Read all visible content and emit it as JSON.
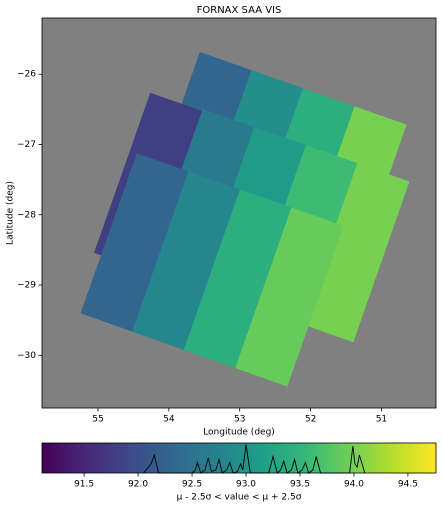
{
  "chart_data": {
    "type": "footprint",
    "title": "FORNAX SAA VIS",
    "xlabel": "Longitude (deg)",
    "ylabel": "Latitude (deg)",
    "xlim": [
      55.79,
      50.23
    ],
    "ylim": [
      -30.75,
      -25.2
    ],
    "xticks": [
      55,
      54,
      53,
      52,
      51
    ],
    "yticks": [
      {
        "value": -26,
        "label": "−26"
      },
      {
        "value": -27,
        "label": "−27"
      },
      {
        "value": -28,
        "label": "−28"
      },
      {
        "value": -29,
        "label": "−29"
      },
      {
        "value": -30,
        "label": "−30"
      }
    ],
    "background": "#808080",
    "colormap": "viridis",
    "frames": [
      {
        "corners": [
          [
            53.56,
            -25.69
          ],
          [
            50.65,
            -26.72
          ],
          [
            51.44,
            -28.99
          ],
          [
            54.35,
            -27.96
          ]
        ],
        "values": [
          92.3,
          92.9,
          93.4,
          94.0
        ]
      },
      {
        "corners": [
          [
            54.26,
            -26.27
          ],
          [
            51.34,
            -27.3
          ],
          [
            52.13,
            -29.57
          ],
          [
            55.05,
            -28.54
          ]
        ],
        "values": [
          91.8,
          92.5,
          93.0,
          93.6
        ]
      },
      {
        "corners": [
          [
            53.52,
            -26.5
          ],
          [
            50.61,
            -27.53
          ],
          [
            51.4,
            -29.81
          ],
          [
            54.31,
            -28.77
          ]
        ],
        "values": [
          92.6,
          93.1,
          93.6,
          94.0
        ]
      },
      {
        "corners": [
          [
            54.45,
            -27.13
          ],
          [
            51.54,
            -28.16
          ],
          [
            52.33,
            -30.44
          ],
          [
            55.24,
            -29.4
          ]
        ],
        "values": [
          92.3,
          92.8,
          93.4,
          93.9
        ]
      }
    ],
    "colorbar": {
      "label": "μ - 2.5σ < value < μ + 2.5σ",
      "lim": [
        91.11,
        94.76
      ],
      "ticks": [
        91.5,
        {
          "value": 92,
          "label": "92.0"
        },
        92.5,
        {
          "value": 93,
          "label": "93.0"
        },
        93.5,
        {
          "value": 94,
          "label": "94.0"
        },
        94.5
      ],
      "hist_x": [
        92.05,
        92.12,
        92.15,
        92.19,
        92.5,
        92.53,
        92.55,
        92.58,
        92.62,
        92.65,
        92.68,
        92.72,
        92.75,
        92.78,
        92.82,
        92.85,
        92.88,
        92.92,
        92.95,
        92.97,
        93.0,
        93.04,
        93.21,
        93.25,
        93.29,
        93.32,
        93.35,
        93.38,
        93.42,
        93.45,
        93.48,
        93.52,
        93.55,
        93.58,
        93.62,
        93.65,
        93.69,
        93.96,
        93.99,
        94.01,
        94.03,
        94.05,
        94.1
      ],
      "hist_y": [
        0,
        0.3,
        0.6,
        0,
        0,
        0.1,
        0.35,
        0,
        0.1,
        0.5,
        0.05,
        0.1,
        0.45,
        0,
        0.1,
        0.35,
        0,
        0.05,
        0.3,
        0.1,
        0.95,
        0,
        0,
        0.55,
        0,
        0.1,
        0.4,
        0,
        0.1,
        0.45,
        0,
        0.1,
        0.35,
        0,
        0.1,
        0.55,
        0,
        0,
        0.9,
        0.3,
        0.2,
        0.6,
        0
      ]
    }
  }
}
